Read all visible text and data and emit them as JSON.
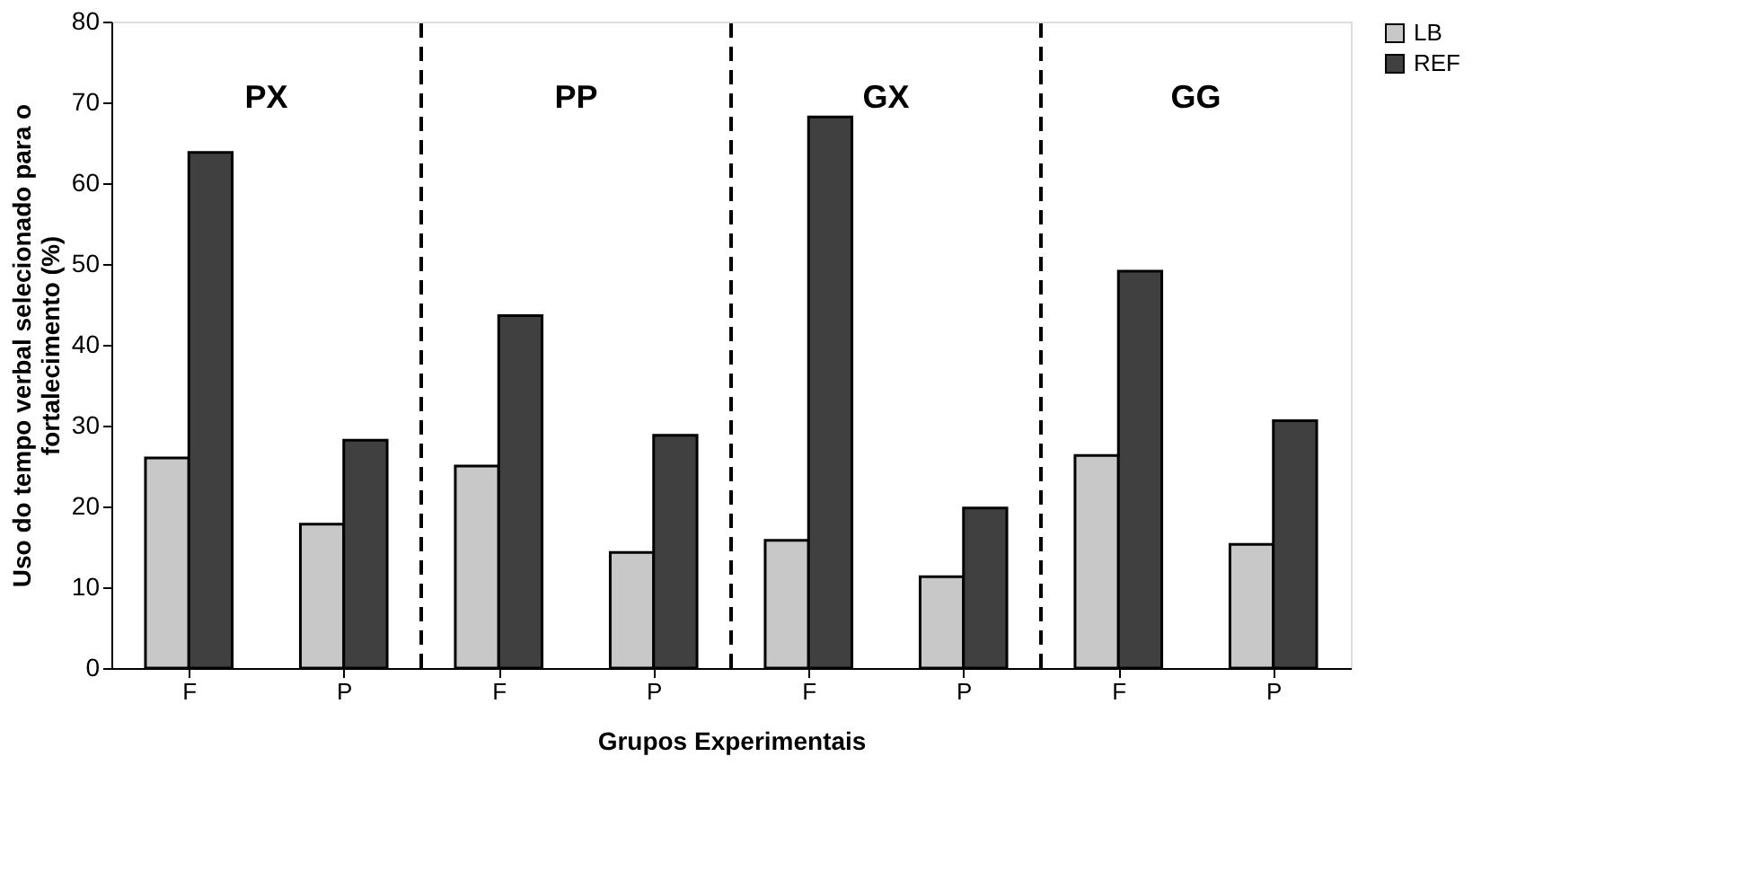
{
  "chart_data": {
    "type": "bar",
    "categories": [
      "F",
      "P",
      "F",
      "P",
      "F",
      "P",
      "F",
      "P"
    ],
    "series": [
      {
        "name": "LB",
        "color": "#c8c8c8",
        "values": [
          26,
          17.8,
          25,
          14.3,
          15.8,
          11.3,
          26.3,
          15.3
        ]
      },
      {
        "name": "REF",
        "color": "#404040",
        "values": [
          63.8,
          28.2,
          43.6,
          28.8,
          68.2,
          19.8,
          49.1,
          30.6
        ]
      }
    ],
    "xlabel": "Grupos Experimentais",
    "ylabel": "Uso do tempo verbal selecionado para o fortalecimento (%)",
    "ylim": [
      0,
      80
    ],
    "yticks": [
      0,
      10,
      20,
      30,
      40,
      50,
      60,
      70,
      80
    ],
    "annotations": [
      "PX",
      "PP",
      "GX",
      "GG"
    ],
    "legend": "top right",
    "grid": false
  }
}
